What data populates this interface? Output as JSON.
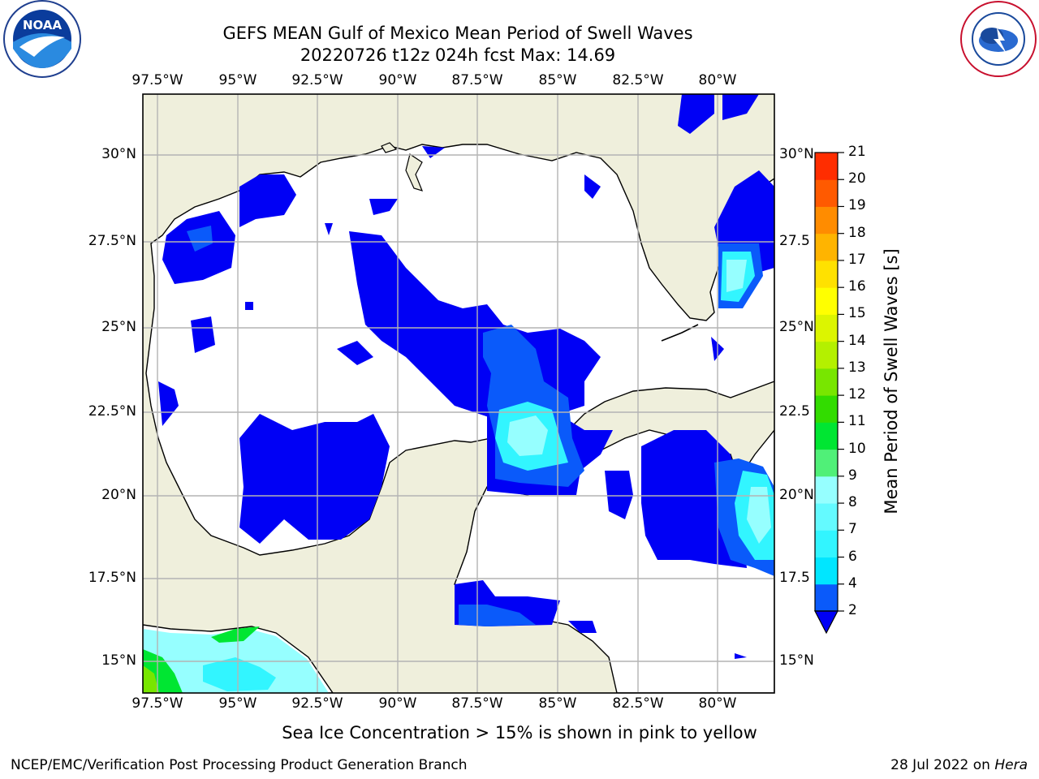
{
  "title_line1": "GEFS MEAN Gulf of Mexico Mean Period of Swell Waves",
  "title_line2": "20220726 t12z 024h fcst   Max: 14.69",
  "logos": {
    "left": "noaa-logo",
    "right": "national-weather-service-logo"
  },
  "map": {
    "lon_labels": [
      "97.5°W",
      "95°W",
      "92.5°W",
      "90°W",
      "87.5°W",
      "85°W",
      "82.5°W",
      "80°W"
    ],
    "lat_labels_left": [
      "30°N",
      "27.5°N",
      "25°N",
      "22.5°N",
      "20°N",
      "17.5°N",
      "15°N"
    ],
    "lat_labels_right": [
      "30°N",
      "27.5",
      "25°N",
      "22.5",
      "20°N",
      "17.5",
      "15°N"
    ],
    "colors": {
      "land": "#efefdc",
      "water": "#ffffff",
      "grid": "#b4b4b4"
    }
  },
  "colorbar": {
    "label": "Mean Period of Swell Waves [s]",
    "ticks": [
      "2",
      "4",
      "6",
      "7",
      "8",
      "9",
      "10",
      "11",
      "12",
      "13",
      "14",
      "15",
      "16",
      "17",
      "18",
      "19",
      "20",
      "21"
    ],
    "colors": [
      "#0a5afa",
      "#00e6ff",
      "#32f5ff",
      "#64faff",
      "#96ffff",
      "#50f078",
      "#00e632",
      "#32dc00",
      "#78e600",
      "#b4f000",
      "#dcf500",
      "#ffff00",
      "#ffe100",
      "#ffb400",
      "#ff8c00",
      "#ff5a00",
      "#ff2d00",
      "#ff0000"
    ],
    "under_color": "#0000f5"
  },
  "note": "Sea Ice Concentration > 15% is shown in pink to yellow",
  "footer_left": "NCEP/EMC/Verification Post Processing Product Generation Branch",
  "footer_right_date": "28 Jul 2022 on",
  "footer_right_host": "Hera"
}
